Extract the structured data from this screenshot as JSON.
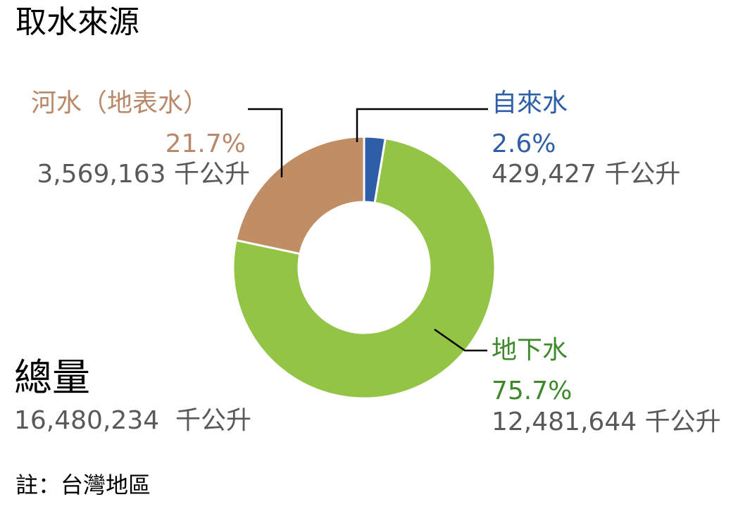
{
  "chart_data": {
    "type": "pie",
    "title": "取水來源",
    "unit": "千公升",
    "slices": [
      {
        "label": "自來水",
        "percent": "2.6%",
        "value": 429427,
        "value_text": "429,427 千公升",
        "color": "#2f5ea8"
      },
      {
        "label": "地下水",
        "percent": "75.7%",
        "value": 12481644,
        "value_text": "12,481,644 千公升",
        "color": "#93c446"
      },
      {
        "label": "河水（地表水）",
        "percent": "21.7%",
        "value": 3569163,
        "value_text": "3,569,163 千公升",
        "color": "#c18d65"
      }
    ],
    "total": {
      "label": "總量",
      "value": 16480234,
      "value_text": "16,480,234  千公升"
    }
  },
  "note": "註：台灣地區",
  "colors": {
    "tap_text": "#2f5ea8",
    "ground_text": "#3e8a2b",
    "river_text": "#b8896a",
    "value_text": "#595959",
    "title_text": "#000000",
    "leader_line": "#000000"
  }
}
